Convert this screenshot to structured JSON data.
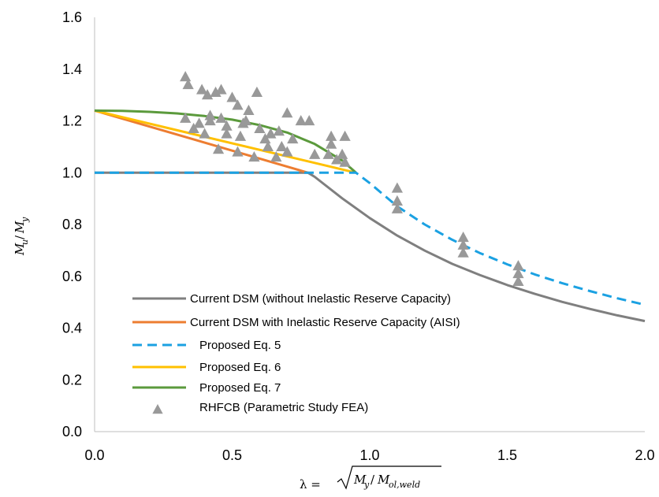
{
  "chart_data": {
    "type": "scatter",
    "title": "",
    "xlabel": "λ = √(My/Mol,weld)",
    "ylabel": "Mu/My",
    "xlim": [
      0.0,
      2.0
    ],
    "ylim": [
      0.0,
      1.6
    ],
    "x_ticks": [
      "0.0",
      "0.5",
      "1.0",
      "1.5",
      "2.0"
    ],
    "y_ticks": [
      "0.0",
      "0.2",
      "0.4",
      "0.6",
      "0.8",
      "1.0",
      "1.2",
      "1.4",
      "1.6"
    ],
    "grid": false,
    "legend_position": "bottom-left",
    "series": [
      {
        "name": "Current DSM (without Inelastic Reserve Capacity)",
        "kind": "line",
        "dash": "solid",
        "color": "#7f7f7f",
        "x": [
          0.0,
          0.776,
          0.8,
          0.9,
          1.0,
          1.1,
          1.2,
          1.3,
          1.4,
          1.5,
          1.6,
          1.7,
          1.8,
          1.9,
          2.0
        ],
        "y": [
          1.0,
          1.0,
          0.984,
          0.901,
          0.825,
          0.757,
          0.699,
          0.648,
          0.605,
          0.566,
          0.532,
          0.501,
          0.474,
          0.449,
          0.427
        ]
      },
      {
        "name": "Current DSM with Inelastic Reserve Capacity (AISI)",
        "kind": "line",
        "dash": "solid",
        "color": "#ed7d31",
        "x": [
          0.0,
          0.776
        ],
        "y": [
          1.24,
          1.0
        ]
      },
      {
        "name": "Proposed Eq. 5",
        "kind": "line",
        "dash": "dashed",
        "color": "#1ba1e2",
        "x": [
          0.0,
          0.95,
          1.0,
          1.1,
          1.2,
          1.3,
          1.4,
          1.5,
          1.6,
          1.7,
          1.8,
          1.9,
          2.0
        ],
        "y": [
          1.0,
          1.0,
          0.96,
          0.87,
          0.8,
          0.741,
          0.69,
          0.646,
          0.607,
          0.573,
          0.543,
          0.515,
          0.49
        ]
      },
      {
        "name": "Proposed Eq. 6",
        "kind": "line",
        "dash": "solid",
        "color": "#ffc000",
        "x": [
          0.0,
          0.95
        ],
        "y": [
          1.24,
          1.0
        ]
      },
      {
        "name": "Proposed Eq. 7",
        "kind": "line",
        "dash": "solid",
        "color": "#5b9a3c",
        "x": [
          0.0,
          0.1,
          0.2,
          0.3,
          0.4,
          0.5,
          0.6,
          0.7,
          0.8,
          0.9,
          0.95
        ],
        "y": [
          1.24,
          1.239,
          1.235,
          1.229,
          1.219,
          1.205,
          1.184,
          1.155,
          1.111,
          1.047,
          1.0
        ]
      },
      {
        "name": "RHFCB (Parametric Study FEA)",
        "kind": "scatter",
        "marker": "triangle",
        "color": "#999999",
        "x": [
          0.33,
          0.33,
          0.34,
          0.36,
          0.38,
          0.39,
          0.4,
          0.41,
          0.42,
          0.42,
          0.44,
          0.45,
          0.46,
          0.46,
          0.48,
          0.48,
          0.5,
          0.52,
          0.52,
          0.53,
          0.54,
          0.55,
          0.56,
          0.58,
          0.59,
          0.6,
          0.62,
          0.63,
          0.64,
          0.66,
          0.67,
          0.68,
          0.7,
          0.7,
          0.72,
          0.75,
          0.78,
          0.8,
          0.85,
          0.86,
          0.86,
          0.88,
          0.9,
          0.91,
          0.91,
          1.1,
          1.1,
          1.1,
          1.34,
          1.34,
          1.34,
          1.54,
          1.54,
          1.54
        ],
        "y": [
          1.37,
          1.21,
          1.34,
          1.17,
          1.19,
          1.32,
          1.15,
          1.3,
          1.22,
          1.2,
          1.31,
          1.09,
          1.21,
          1.32,
          1.15,
          1.18,
          1.29,
          1.08,
          1.26,
          1.14,
          1.19,
          1.2,
          1.24,
          1.06,
          1.31,
          1.17,
          1.13,
          1.1,
          1.15,
          1.06,
          1.16,
          1.1,
          1.23,
          1.08,
          1.13,
          1.2,
          1.2,
          1.07,
          1.07,
          1.11,
          1.14,
          1.05,
          1.07,
          1.14,
          1.04,
          0.94,
          0.89,
          0.86,
          0.75,
          0.72,
          0.69,
          0.64,
          0.61,
          0.58
        ]
      }
    ]
  },
  "axis": {
    "x_title_prefix": "λ = ",
    "x_title_radicand_main_1": "M",
    "x_title_radicand_sub_1": "y",
    "x_title_slash": "/",
    "x_title_radicand_main_2": "M",
    "x_title_radicand_sub_2": "ol,weld",
    "y_title_main_1": "M",
    "y_title_sub_1": "u",
    "y_title_slash": "/",
    "y_title_main_2": "M",
    "y_title_sub_2": "y"
  }
}
